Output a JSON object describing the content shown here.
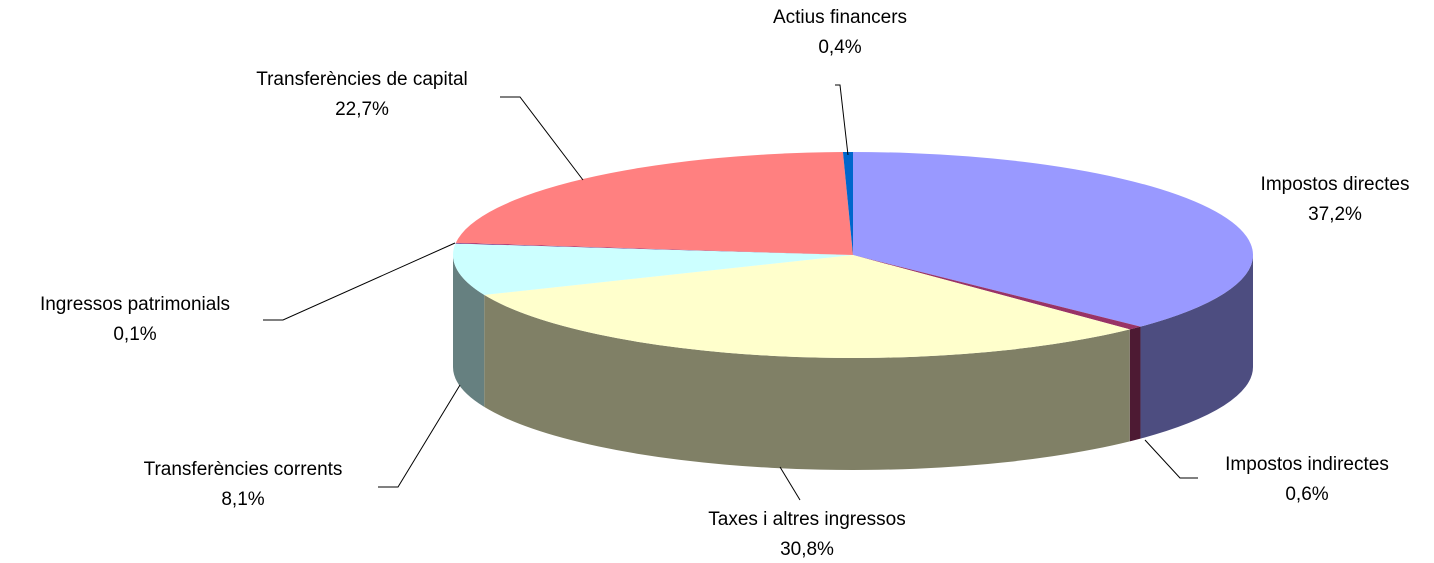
{
  "chart_data": {
    "type": "pie",
    "categories": [
      "Impostos directes",
      "Impostos indirectes",
      "Taxes i altres ingressos",
      "Transferències corrents",
      "Ingressos patrimonials",
      "Transferències de capital",
      "Actius financers"
    ],
    "values": [
      37.2,
      0.6,
      30.8,
      8.1,
      0.1,
      22.7,
      0.4
    ],
    "value_labels": [
      "37,2%",
      "0,6%",
      "30,8%",
      "8,1%",
      "0,1%",
      "22,7%",
      "0,4%"
    ],
    "colors": [
      "#9999ff",
      "#993366",
      "#ffffcc",
      "#ccffff",
      "#660066",
      "#ff8080",
      "#0066cc"
    ]
  }
}
